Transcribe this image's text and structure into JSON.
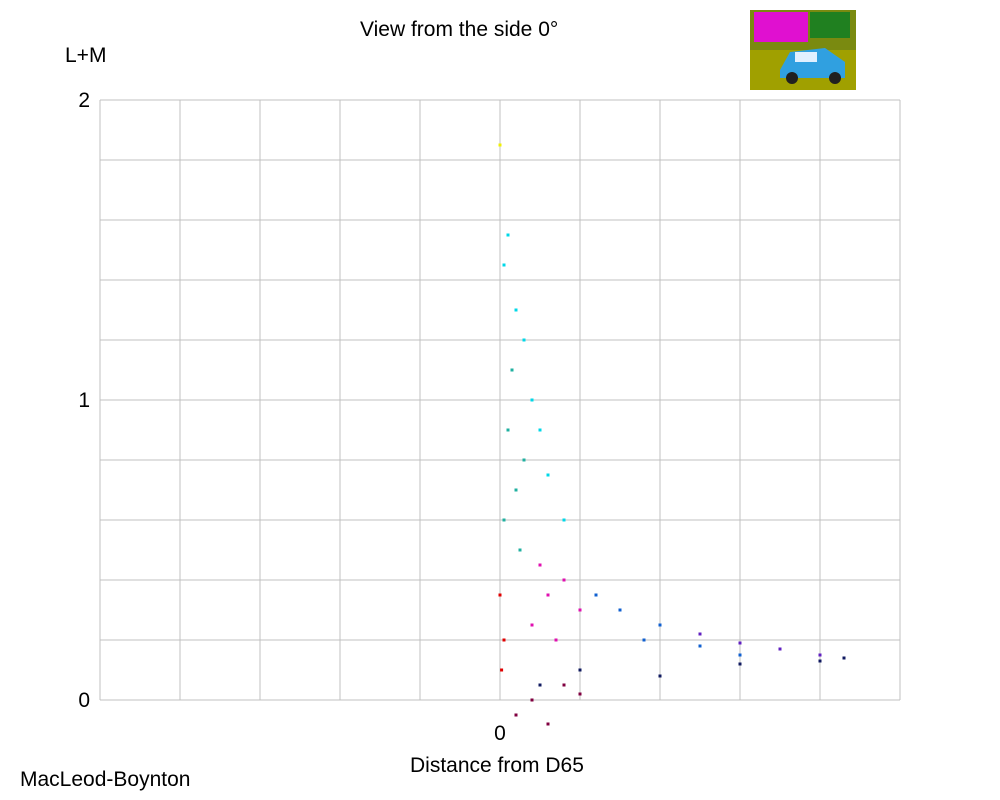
{
  "chart_data": {
    "type": "scatter",
    "title": "View from the side 0°",
    "xlabel": "Distance from D65",
    "ylabel": "L+M",
    "corner_label": "MacLeod-Boynton",
    "xlim": [
      -5,
      5
    ],
    "ylim": [
      0,
      2
    ],
    "x_ticks": [
      {
        "value": 0,
        "label": "0"
      }
    ],
    "y_ticks": [
      {
        "value": 0,
        "label": "0"
      },
      {
        "value": 1,
        "label": "1"
      },
      {
        "value": 2,
        "label": "2"
      }
    ],
    "grid": true,
    "series": [
      {
        "color": "#00d8e8",
        "points": [
          [
            0.1,
            1.55
          ],
          [
            0.3,
            1.2
          ],
          [
            0.5,
            0.9
          ],
          [
            0.8,
            0.6
          ],
          [
            0.2,
            1.3
          ],
          [
            0.05,
            1.45
          ],
          [
            0.4,
            1.0
          ],
          [
            0.6,
            0.75
          ]
        ]
      },
      {
        "color": "#20b0a0",
        "points": [
          [
            0.1,
            0.9
          ],
          [
            0.2,
            0.7
          ],
          [
            0.15,
            1.1
          ],
          [
            0.05,
            0.6
          ],
          [
            0.25,
            0.5
          ],
          [
            0.3,
            0.8
          ]
        ]
      },
      {
        "color": "#e010b0",
        "points": [
          [
            0.5,
            0.45
          ],
          [
            0.6,
            0.35
          ],
          [
            0.4,
            0.25
          ],
          [
            0.8,
            0.4
          ],
          [
            0.7,
            0.2
          ],
          [
            1.0,
            0.3
          ]
        ]
      },
      {
        "color": "#1060d0",
        "points": [
          [
            1.2,
            0.35
          ],
          [
            1.5,
            0.3
          ],
          [
            2.0,
            0.25
          ],
          [
            1.8,
            0.2
          ],
          [
            2.5,
            0.18
          ],
          [
            3.0,
            0.15
          ]
        ]
      },
      {
        "color": "#6020c0",
        "points": [
          [
            2.5,
            0.22
          ],
          [
            3.0,
            0.19
          ],
          [
            3.5,
            0.17
          ],
          [
            4.0,
            0.15
          ],
          [
            4.3,
            0.14
          ]
        ]
      },
      {
        "color": "#101a60",
        "points": [
          [
            1.0,
            0.1
          ],
          [
            2.0,
            0.08
          ],
          [
            3.0,
            0.12
          ],
          [
            4.0,
            0.13
          ],
          [
            4.3,
            0.14
          ],
          [
            0.5,
            0.05
          ]
        ]
      },
      {
        "color": "#800040",
        "points": [
          [
            0.2,
            -0.05
          ],
          [
            0.4,
            0.0
          ],
          [
            0.6,
            -0.08
          ],
          [
            0.8,
            0.05
          ],
          [
            1.0,
            0.02
          ]
        ]
      },
      {
        "color": "#e00000",
        "points": [
          [
            0.0,
            0.35
          ],
          [
            0.05,
            0.2
          ],
          [
            0.02,
            0.1
          ]
        ]
      },
      {
        "color": "#f0f000",
        "points": [
          [
            0.0,
            1.85
          ]
        ]
      }
    ]
  },
  "thumbnail": {
    "description_icon": "car-photo-thumbnail-icon"
  }
}
